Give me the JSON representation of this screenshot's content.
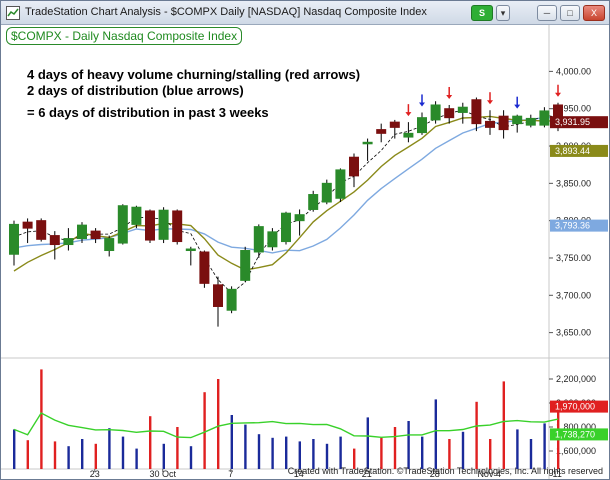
{
  "window": {
    "title": "TradeStation Chart Analysis - $COMPX Daily [NASDAQ] Nasdaq Composite Index",
    "s_button": "S",
    "minimize": "─",
    "maximize": "□",
    "close": "X"
  },
  "symbol_label": "$COMPX - Daily  Nasdaq Composite Index",
  "annotations": [
    "4 days of heavy volume churning/stalling (red arrows)",
    "2 days of distribution (blue arrows)",
    "= 6 days of distribution in past 3 weeks"
  ],
  "footer": "Created with TradeStation. ©TradeStation Technologies, Inc. All rights reserved",
  "colors": {
    "up": "#2a8a2a",
    "down": "#7a0f0f",
    "ma_fast": "#000000",
    "ma_mid": "#8a8a1a",
    "ma_slow": "#7ea9e0",
    "vol_up": "#1a2a9a",
    "vol_down": "#e02020",
    "vol_ma": "#39d12a",
    "red_arrow": "#e02020",
    "blue_arrow": "#1a2ad0"
  },
  "chart_data": {
    "type": "candlestick",
    "x_tick_labels": [
      "23",
      "30 Oct",
      "7",
      "14",
      "21",
      "28",
      "Nov 4",
      "11"
    ],
    "price_axis": {
      "ticks": [
        "4,000.00",
        "3,950.00",
        "3,900.00",
        "3,850.00",
        "3,800.00",
        "3,750.00",
        "3,700.00",
        "3,650.00"
      ],
      "range": [
        3620,
        4030
      ]
    },
    "price_tags": [
      {
        "label": "3,931.95",
        "value": 3931.95,
        "color": "#7a0f0f"
      },
      {
        "label": "3,893.44",
        "value": 3893.44,
        "color": "#8a8a1a"
      },
      {
        "label": "3,793.36",
        "value": 3793.36,
        "color": "#7ea9e0"
      }
    ],
    "volume_axis": {
      "ticks": [
        "2,200,000",
        "2,000,000",
        "1,800,000",
        "1,600,000"
      ],
      "range": [
        1450000,
        2350000
      ]
    },
    "volume_tags": [
      {
        "label": "1,970,000",
        "value": 1970000,
        "color": "#e02020"
      },
      {
        "label": "1,738,270",
        "value": 1738270,
        "color": "#39d12a"
      }
    ],
    "candles": [
      {
        "o": 3755,
        "h": 3800,
        "l": 3740,
        "c": 3795,
        "v": 1780000
      },
      {
        "o": 3798,
        "h": 3803,
        "l": 3770,
        "c": 3790,
        "v": 1690000
      },
      {
        "o": 3800,
        "h": 3803,
        "l": 3772,
        "c": 3775,
        "v": 2280000
      },
      {
        "o": 3780,
        "h": 3786,
        "l": 3748,
        "c": 3768,
        "v": 1680000
      },
      {
        "o": 3768,
        "h": 3790,
        "l": 3760,
        "c": 3776,
        "v": 1640000
      },
      {
        "o": 3776,
        "h": 3798,
        "l": 3770,
        "c": 3794,
        "v": 1700000
      },
      {
        "o": 3786,
        "h": 3790,
        "l": 3770,
        "c": 3776,
        "v": 1660000
      },
      {
        "o": 3760,
        "h": 3780,
        "l": 3752,
        "c": 3776,
        "v": 1790000
      },
      {
        "o": 3770,
        "h": 3822,
        "l": 3768,
        "c": 3820,
        "v": 1720000
      },
      {
        "o": 3795,
        "h": 3820,
        "l": 3790,
        "c": 3818,
        "v": 1620000
      },
      {
        "o": 3813,
        "h": 3815,
        "l": 3770,
        "c": 3774,
        "v": 1890000
      },
      {
        "o": 3775,
        "h": 3818,
        "l": 3770,
        "c": 3814,
        "v": 1660000
      },
      {
        "o": 3813,
        "h": 3815,
        "l": 3768,
        "c": 3772,
        "v": 1800000
      },
      {
        "o": 3760,
        "h": 3765,
        "l": 3740,
        "c": 3762,
        "v": 1640000
      },
      {
        "o": 3758,
        "h": 3760,
        "l": 3710,
        "c": 3716,
        "v": 2090000
      },
      {
        "o": 3714,
        "h": 3725,
        "l": 3658,
        "c": 3685,
        "v": 2200000
      },
      {
        "o": 3680,
        "h": 3712,
        "l": 3676,
        "c": 3708,
        "v": 1900000
      },
      {
        "o": 3720,
        "h": 3765,
        "l": 3718,
        "c": 3760,
        "v": 1820000
      },
      {
        "o": 3758,
        "h": 3795,
        "l": 3750,
        "c": 3792,
        "v": 1740000
      },
      {
        "o": 3765,
        "h": 3790,
        "l": 3760,
        "c": 3785,
        "v": 1710000
      },
      {
        "o": 3772,
        "h": 3812,
        "l": 3768,
        "c": 3810,
        "v": 1720000
      },
      {
        "o": 3800,
        "h": 3815,
        "l": 3780,
        "c": 3808,
        "v": 1680000
      },
      {
        "o": 3815,
        "h": 3840,
        "l": 3812,
        "c": 3835,
        "v": 1700000
      },
      {
        "o": 3825,
        "h": 3855,
        "l": 3822,
        "c": 3850,
        "v": 1660000
      },
      {
        "o": 3830,
        "h": 3870,
        "l": 3825,
        "c": 3868,
        "v": 1720000
      },
      {
        "o": 3885,
        "h": 3890,
        "l": 3845,
        "c": 3860,
        "v": 1620000
      },
      {
        "o": 3905,
        "h": 3910,
        "l": 3880,
        "c": 3905,
        "v": 1880000
      },
      {
        "o": 3922,
        "h": 3930,
        "l": 3905,
        "c": 3917,
        "v": 1710000
      },
      {
        "o": 3932,
        "h": 3935,
        "l": 3910,
        "c": 3925,
        "v": 1800000
      },
      {
        "o": 3912,
        "h": 3932,
        "l": 3905,
        "c": 3917,
        "v": 1850000
      },
      {
        "o": 3918,
        "h": 3945,
        "l": 3915,
        "c": 3938,
        "v": 1720000
      },
      {
        "o": 3935,
        "h": 3960,
        "l": 3930,
        "c": 3955,
        "v": 2030000
      },
      {
        "o": 3950,
        "h": 3955,
        "l": 3930,
        "c": 3938,
        "v": 1700000
      },
      {
        "o": 3945,
        "h": 3958,
        "l": 3930,
        "c": 3952,
        "v": 1760000
      },
      {
        "o": 3962,
        "h": 3965,
        "l": 3920,
        "c": 3930,
        "v": 2010000
      },
      {
        "o": 3933,
        "h": 3948,
        "l": 3915,
        "c": 3925,
        "v": 1700000
      },
      {
        "o": 3940,
        "h": 3948,
        "l": 3910,
        "c": 3922,
        "v": 2180000
      },
      {
        "o": 3930,
        "h": 3942,
        "l": 3918,
        "c": 3940,
        "v": 1780000
      },
      {
        "o": 3928,
        "h": 3942,
        "l": 3925,
        "c": 3937,
        "v": 1700000
      },
      {
        "o": 3928,
        "h": 3952,
        "l": 3925,
        "c": 3947,
        "v": 1830000
      },
      {
        "o": 3955,
        "h": 3958,
        "l": 3920,
        "c": 3932,
        "v": 1970000
      }
    ],
    "distribution_days": [
      {
        "index": 29,
        "color": "red"
      },
      {
        "index": 30,
        "color": "blue"
      },
      {
        "index": 32,
        "color": "red"
      },
      {
        "index": 35,
        "color": "red"
      },
      {
        "index": 37,
        "color": "blue"
      },
      {
        "index": 40,
        "color": "red"
      }
    ]
  }
}
